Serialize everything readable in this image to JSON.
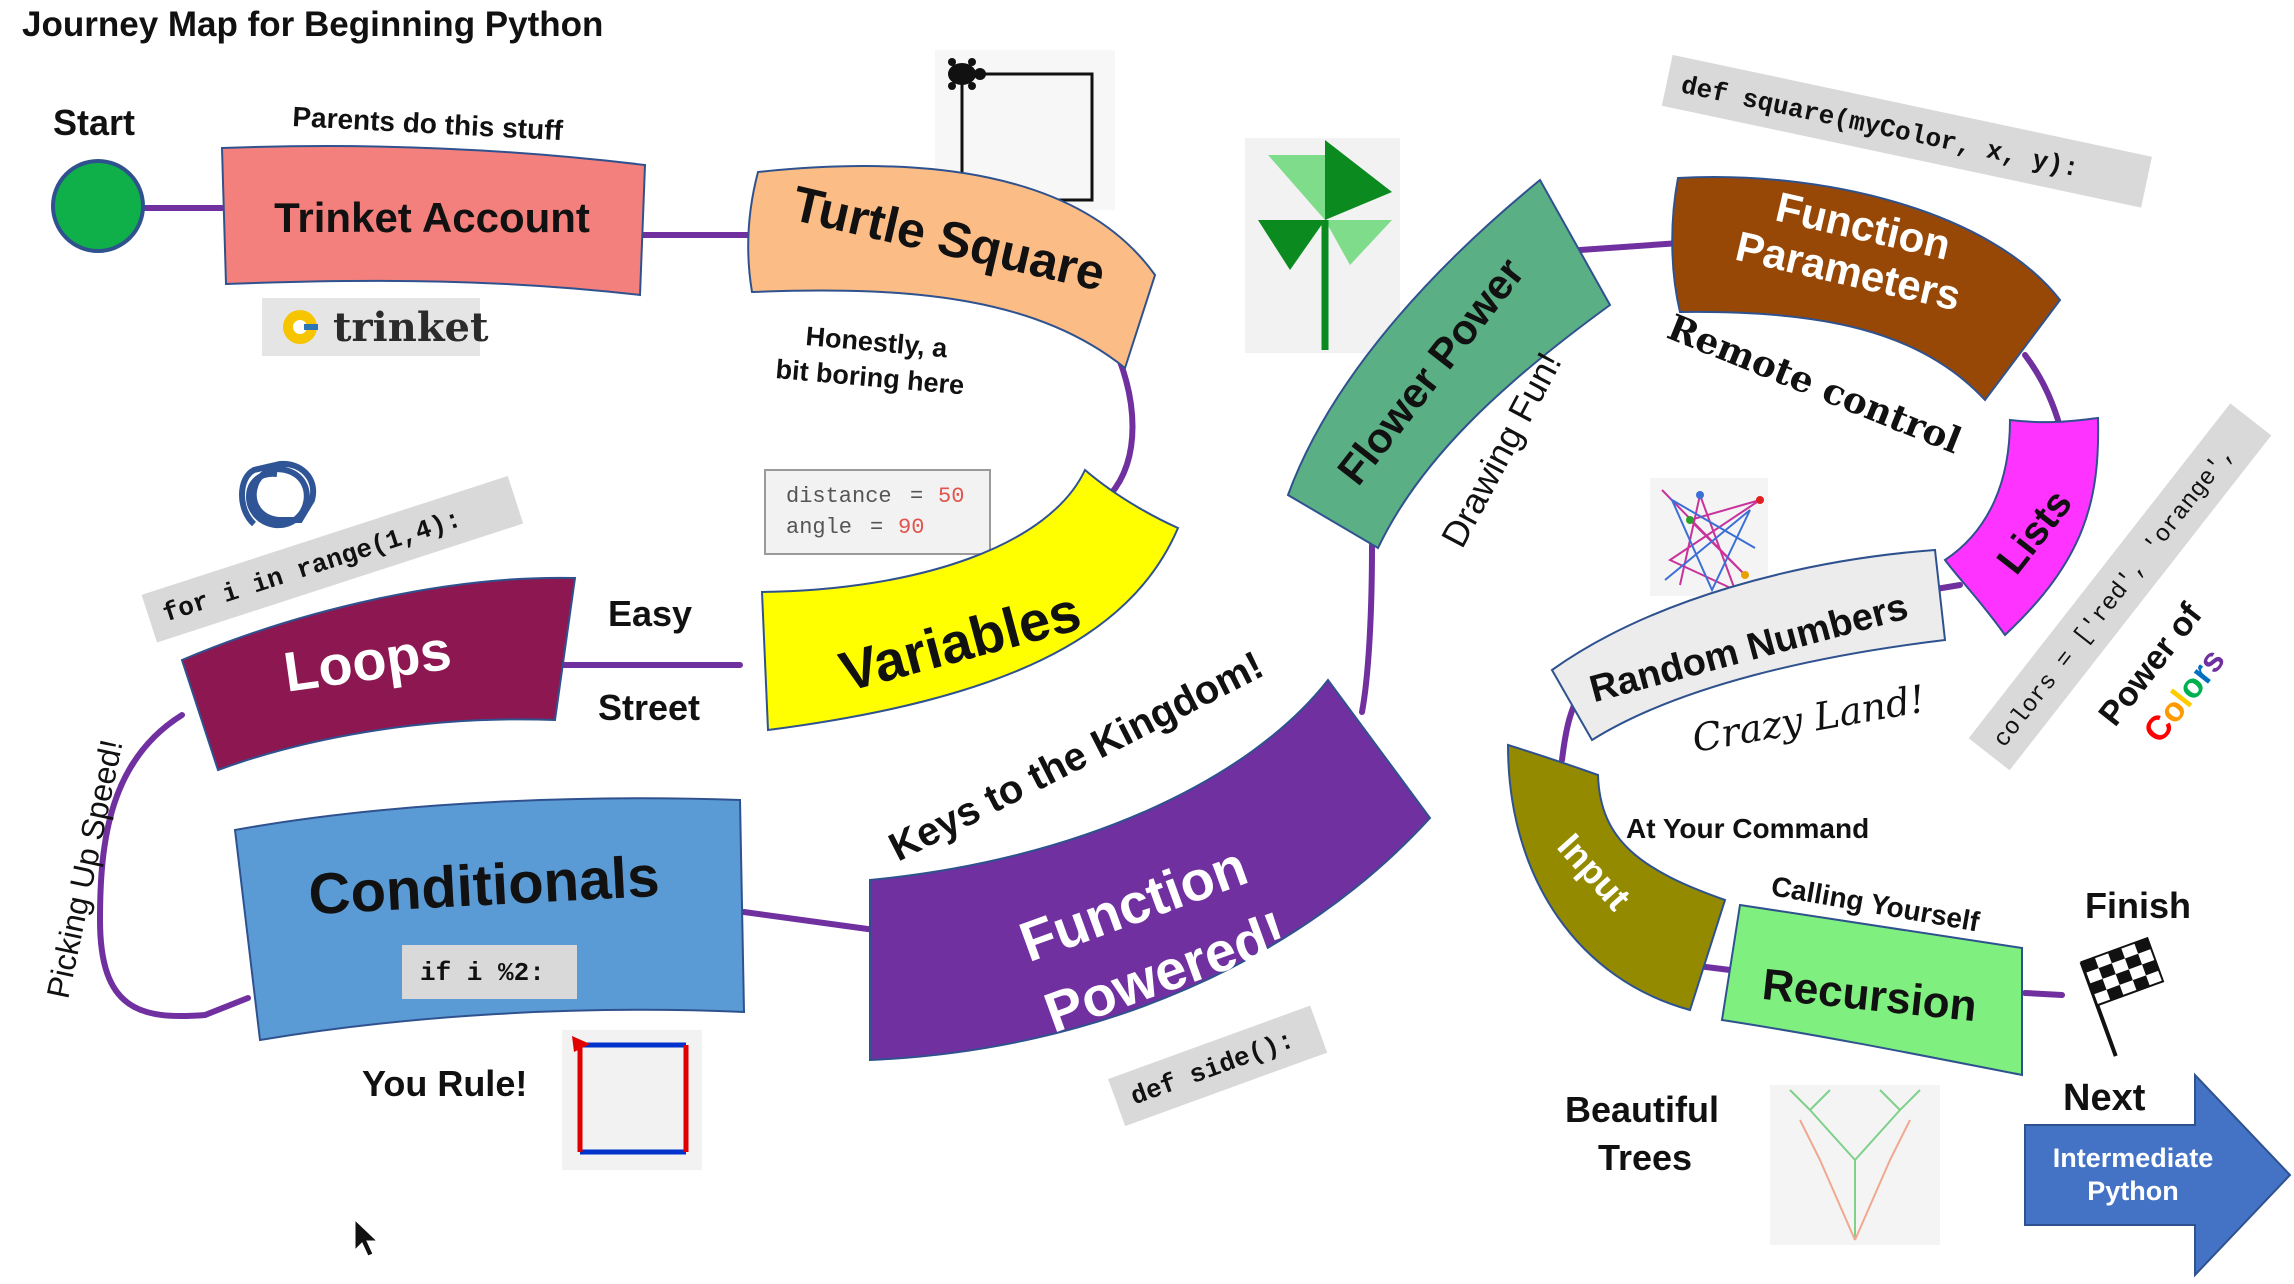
{
  "title": "Journey Map for Beginning Python",
  "start_label": "Start",
  "finish_label": "Finish",
  "next": {
    "label": "Next",
    "arrow_line1": "Intermediate",
    "arrow_line2": "Python",
    "color": "#4472c4"
  },
  "stops": {
    "trinket_account": {
      "label": "Trinket Account",
      "color": "#f4807d"
    },
    "turtle_square": {
      "label": "Turtle Square",
      "color": "#fbbd85"
    },
    "variables": {
      "label": "Variables",
      "color": "#ffff00"
    },
    "loops": {
      "label": "Loops",
      "color": "#8c1751"
    },
    "conditionals": {
      "label": "Conditionals",
      "color": "#5b9bd5"
    },
    "function_powered": {
      "line1": "Function",
      "line2": "Powered!",
      "color": "#7030a0"
    },
    "flower_power": {
      "label": "Flower Power",
      "color": "#5baf85"
    },
    "function_parameters": {
      "line1": "Function",
      "line2": "Parameters",
      "color": "#984806"
    },
    "lists": {
      "label": "Lists",
      "color": "#ff33ff"
    },
    "random_numbers": {
      "label": "Random Numbers",
      "color": "#ececec"
    },
    "input": {
      "label": "Input",
      "color": "#948a00"
    },
    "recursion": {
      "label": "Recursion",
      "color": "#7ff07f"
    }
  },
  "annotations": {
    "parents": "Parents do this stuff",
    "honestly_1": "Honestly, a",
    "honestly_2": "bit boring here",
    "easy": "Easy",
    "street": "Street",
    "picking_up_speed": "Picking Up Speed!",
    "you_rule": "You Rule!",
    "keys_to_kingdom": "Keys to the Kingdom!",
    "drawing_fun": "Drawing Fun!",
    "remote_control": "Remote control",
    "crazy_land": "Crazy Land!",
    "at_your_command": "At Your Command",
    "calling_yourself": "Calling Yourself",
    "beautiful": "Beautiful",
    "trees": "Trees",
    "power_of": "Power of",
    "colors_letters": [
      "C",
      "o",
      "l",
      "o",
      "r",
      "s"
    ],
    "colors_letter_colors": [
      "#ff0000",
      "#ff9900",
      "#ffcc00",
      "#00b050",
      "#0070c0",
      "#7030a0"
    ]
  },
  "code": {
    "for_loop": "for i in range(1,4):",
    "distance": "distance",
    "distance_value": "50",
    "angle": "angle",
    "angle_value": "90",
    "if_mod": "if i %2:",
    "def_side": "def side():",
    "def_square": "def square(myColor, x, y):",
    "colors_list": "colors = ['red', 'orange',"
  },
  "logo_text": "trinket",
  "path_color": "#7030a0"
}
